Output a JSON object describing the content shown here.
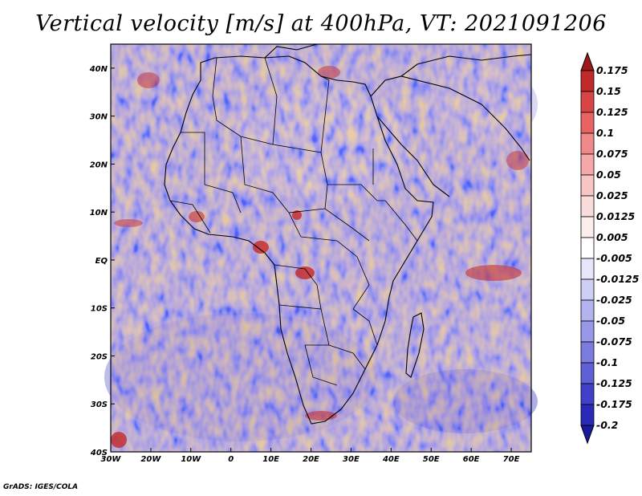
{
  "title": "Vertical velocity [m/s] at 400hPa, VT: 2021091206",
  "footer": "GrADS: IGES/COLA",
  "map": {
    "projection": "latlon",
    "lon_range": [
      -30,
      75
    ],
    "lat_range": [
      -40,
      45
    ],
    "x_ticks": [
      "30W",
      "20W",
      "10W",
      "0",
      "10E",
      "20E",
      "30E",
      "40E",
      "50E",
      "60E",
      "70E"
    ],
    "y_ticks": [
      "40N",
      "30N",
      "20N",
      "10N",
      "EQ",
      "10S",
      "20S",
      "30S",
      "40S"
    ]
  },
  "colorbar": {
    "levels": [
      "0.175",
      "0.15",
      "0.125",
      "0.1",
      "0.075",
      "0.05",
      "0.025",
      "0.0125",
      "0.005",
      "-0.005",
      "-0.0125",
      "-0.025",
      "-0.05",
      "-0.075",
      "-0.1",
      "-0.125",
      "-0.175",
      "-0.2"
    ],
    "colors": [
      "#9e1a1a",
      "#c02a2a",
      "#d84545",
      "#e86464",
      "#f08a8a",
      "#f5a8a8",
      "#f8c4c4",
      "#fbdcdc",
      "#fdeeee",
      "#ffffff",
      "#e6e6fa",
      "#cfcff5",
      "#b3b3ef",
      "#9898e8",
      "#7c7ce0",
      "#5f5fd6",
      "#4040c8",
      "#2a2ab8",
      "#1a1a9e"
    ]
  }
}
